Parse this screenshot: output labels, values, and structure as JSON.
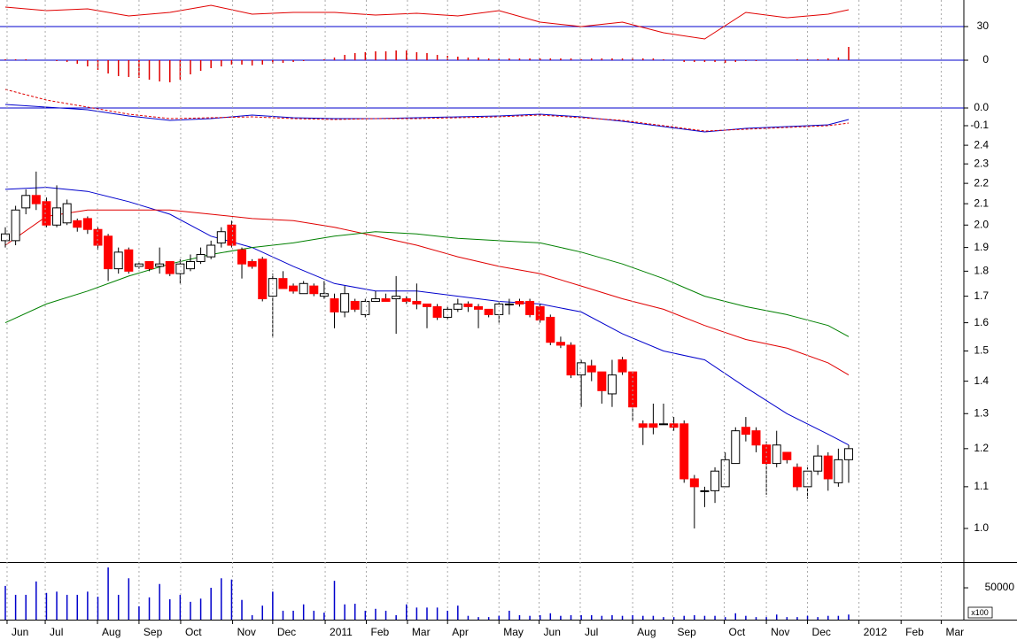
{
  "chart_data": [
    {
      "type": "line",
      "xlim": [
        -0.517,
        93.2
      ],
      "ylim": [
        12,
        60
      ],
      "yticks": [
        30
      ],
      "reference_line": {
        "value": 30,
        "color": "#0000cc"
      },
      "series": [
        {
          "color": "#e00000",
          "x": [
            0,
            4,
            8,
            12,
            16,
            20,
            24,
            28,
            32,
            36,
            40,
            44,
            48,
            52,
            56,
            60,
            64,
            68,
            72,
            76,
            80,
            82
          ],
          "values": [
            52,
            48,
            50,
            42,
            46,
            54,
            44,
            46,
            46,
            43,
            45,
            42,
            48,
            35,
            30,
            35,
            23,
            16,
            46,
            40,
            44,
            49
          ]
        }
      ]
    },
    {
      "type": "bar",
      "xlim": [
        -0.517,
        93.2
      ],
      "ylim": [
        -25,
        20
      ],
      "yticks": [
        0
      ],
      "color": "#e00000",
      "reference_line": {
        "value": 0,
        "color": "#0000cc"
      },
      "categories": [
        null,
        null,
        null,
        null,
        null,
        null,
        null,
        null,
        null,
        null,
        null,
        null,
        null,
        null,
        null,
        null,
        null,
        null,
        null,
        null,
        null,
        null,
        null,
        null,
        null,
        null,
        null,
        null,
        null,
        null,
        null,
        null,
        null,
        null,
        null,
        null,
        null,
        null,
        null,
        null,
        null,
        null,
        null,
        null,
        null,
        null,
        null,
        null,
        null,
        null,
        null,
        null,
        null,
        null,
        null,
        null,
        null,
        null,
        null,
        null,
        null,
        null,
        null,
        null,
        null,
        null,
        null,
        null,
        null,
        null,
        null,
        null,
        null,
        null,
        null,
        null,
        null,
        null,
        null,
        null,
        null,
        null,
        null
      ],
      "values": [
        1,
        1,
        1,
        0,
        0,
        -1,
        -2,
        -4,
        -7,
        -11,
        -15,
        -18,
        -19,
        -20,
        -22,
        -24,
        -25,
        -22,
        -16,
        -12,
        -9,
        -7,
        -5,
        -5,
        -6,
        -5,
        -4,
        -3,
        -2,
        -1,
        0,
        1,
        3,
        6,
        8,
        9,
        10,
        10,
        11,
        11,
        9,
        8,
        6,
        5,
        4,
        3,
        3,
        2,
        2,
        2,
        2,
        2,
        2,
        2,
        2,
        2,
        1,
        2,
        2,
        2,
        2,
        3,
        2,
        2,
        1,
        0,
        -2,
        -2,
        -2,
        -2,
        -3,
        -2,
        -1,
        -1,
        0,
        0,
        0,
        1,
        1,
        1,
        2,
        3,
        15
      ]
    },
    {
      "type": "line",
      "xlim": [
        -0.517,
        93.2
      ],
      "ylim": [
        -0.18,
        0.135
      ],
      "yticks": [
        {
          "value": 0,
          "label": "0.0"
        },
        -0.1
      ],
      "reference_line": {
        "value": 0,
        "color": "#0000cc"
      },
      "series": [
        {
          "color": "#0000cc",
          "line_style": "solid",
          "x": [
            0,
            4,
            8,
            12,
            16,
            20,
            24,
            28,
            32,
            36,
            40,
            44,
            48,
            52,
            56,
            60,
            64,
            68,
            72,
            76,
            80,
            82
          ],
          "values": [
            0.02,
            0.005,
            -0.01,
            -0.045,
            -0.07,
            -0.06,
            -0.04,
            -0.055,
            -0.06,
            -0.06,
            -0.055,
            -0.05,
            -0.045,
            -0.035,
            -0.05,
            -0.075,
            -0.105,
            -0.135,
            -0.115,
            -0.105,
            -0.095,
            -0.065
          ]
        },
        {
          "color": "#e00000",
          "line_style": "dashed",
          "x": [
            0,
            4,
            8,
            12,
            16,
            20,
            24,
            28,
            32,
            36,
            40,
            44,
            48,
            52,
            56,
            60,
            64,
            68,
            72,
            76,
            80,
            82
          ],
          "values": [
            0.105,
            0.045,
            0.005,
            -0.035,
            -0.06,
            -0.055,
            -0.05,
            -0.06,
            -0.065,
            -0.06,
            -0.06,
            -0.055,
            -0.05,
            -0.04,
            -0.055,
            -0.07,
            -0.1,
            -0.13,
            -0.12,
            -0.11,
            -0.1,
            -0.085
          ]
        }
      ]
    },
    {
      "type": "candlestick",
      "xlim": [
        -0.517,
        93.2
      ],
      "ylim": [
        0.926,
        2.42
      ],
      "log_scale": true,
      "yticks": [
        2.4,
        2.3,
        2.2,
        2.1,
        {
          "value": 2,
          "label": "2.0"
        },
        1.9,
        1.8,
        1.7,
        1.6,
        1.5,
        1.4,
        1.3,
        1.2,
        1.1,
        {
          "value": 1,
          "label": "1.0"
        }
      ],
      "up_color": "#ffffff",
      "down_color": "#ff0000",
      "categories": [
        null,
        null,
        null,
        null,
        null,
        null,
        null,
        null,
        null,
        null,
        null,
        null,
        null,
        null,
        null,
        null,
        null,
        null,
        null,
        null,
        null,
        null,
        null,
        null,
        null,
        null,
        null,
        null,
        null,
        null,
        null,
        null,
        null,
        null,
        null,
        null,
        null,
        null,
        null,
        null,
        null,
        null,
        null,
        null,
        null,
        null,
        null,
        null,
        null,
        null,
        null,
        null,
        null,
        null,
        null,
        null,
        null,
        null,
        null,
        null,
        null,
        null,
        null,
        null,
        null,
        null,
        null,
        null,
        null,
        null,
        null,
        null,
        null,
        null,
        null,
        null,
        null,
        null,
        null,
        null,
        null,
        null,
        null
      ],
      "open": [
        1.93,
        1.93,
        2.08,
        2.14,
        2.11,
        2.0,
        2.01,
        2.02,
        2.03,
        1.98,
        1.95,
        1.81,
        1.89,
        1.82,
        1.84,
        1.82,
        1.84,
        1.79,
        1.81,
        1.84,
        1.86,
        1.92,
        2.0,
        1.89,
        1.84,
        1.85,
        1.7,
        1.77,
        1.74,
        1.71,
        1.74,
        1.7,
        1.69,
        1.64,
        1.68,
        1.63,
        1.68,
        1.69,
        1.69,
        1.69,
        1.68,
        1.67,
        1.66,
        1.62,
        1.65,
        1.67,
        1.66,
        1.65,
        1.63,
        1.67,
        1.68,
        1.68,
        1.66,
        1.62,
        1.53,
        1.52,
        1.42,
        1.45,
        1.43,
        1.36,
        1.47,
        1.43,
        1.27,
        1.27,
        1.27,
        1.27,
        1.27,
        1.12,
        1.09,
        1.09,
        1.1,
        1.16,
        1.26,
        1.25,
        1.21,
        1.16,
        1.19,
        1.15,
        1.1,
        1.14,
        1.18,
        1.11,
        1.17
      ],
      "high": [
        1.99,
        2.09,
        2.17,
        2.26,
        2.13,
        2.19,
        2.12,
        2.03,
        2.04,
        1.99,
        1.96,
        1.9,
        1.9,
        1.84,
        1.84,
        1.9,
        1.84,
        1.85,
        1.87,
        1.9,
        1.93,
        1.99,
        2.02,
        1.9,
        1.85,
        1.86,
        1.79,
        1.8,
        1.75,
        1.76,
        1.75,
        1.76,
        1.71,
        1.74,
        1.69,
        1.69,
        1.72,
        1.71,
        1.78,
        1.7,
        1.75,
        1.67,
        1.67,
        1.66,
        1.69,
        1.68,
        1.67,
        1.65,
        1.68,
        1.69,
        1.69,
        1.69,
        1.67,
        1.63,
        1.55,
        1.53,
        1.47,
        1.47,
        1.43,
        1.47,
        1.48,
        1.43,
        1.28,
        1.33,
        1.33,
        1.29,
        1.28,
        1.13,
        1.1,
        1.15,
        1.19,
        1.26,
        1.29,
        1.26,
        1.22,
        1.25,
        1.19,
        1.16,
        1.15,
        1.21,
        1.19,
        1.2,
        1.21
      ],
      "low": [
        1.9,
        1.91,
        2.05,
        2.07,
        1.99,
        1.99,
        2.0,
        1.97,
        1.96,
        1.89,
        1.76,
        1.79,
        1.79,
        1.81,
        1.8,
        1.79,
        1.78,
        1.75,
        1.8,
        1.83,
        1.85,
        1.9,
        1.9,
        1.77,
        1.81,
        1.68,
        1.55,
        1.73,
        1.71,
        1.71,
        1.7,
        1.69,
        1.58,
        1.62,
        1.64,
        1.62,
        1.68,
        1.68,
        1.56,
        1.67,
        1.65,
        1.58,
        1.61,
        1.61,
        1.64,
        1.64,
        1.58,
        1.62,
        1.6,
        1.63,
        1.66,
        1.62,
        1.6,
        1.52,
        1.51,
        1.41,
        1.32,
        1.4,
        1.33,
        1.32,
        1.42,
        1.28,
        1.21,
        1.24,
        1.27,
        1.25,
        1.11,
        1.0,
        1.05,
        1.06,
        1.1,
        1.16,
        1.22,
        1.19,
        1.08,
        1.15,
        1.16,
        1.09,
        1.07,
        1.13,
        1.09,
        1.1,
        1.11
      ],
      "close": [
        1.96,
        2.07,
        2.14,
        2.1,
        2.0,
        2.08,
        2.1,
        1.99,
        1.98,
        1.91,
        1.81,
        1.88,
        1.8,
        1.83,
        1.81,
        1.83,
        1.79,
        1.83,
        1.84,
        1.87,
        1.91,
        1.97,
        1.91,
        1.83,
        1.82,
        1.69,
        1.77,
        1.73,
        1.72,
        1.75,
        1.71,
        1.71,
        1.64,
        1.71,
        1.65,
        1.68,
        1.69,
        1.68,
        1.7,
        1.68,
        1.67,
        1.66,
        1.62,
        1.65,
        1.67,
        1.66,
        1.65,
        1.63,
        1.67,
        1.67,
        1.67,
        1.63,
        1.61,
        1.53,
        1.52,
        1.42,
        1.46,
        1.43,
        1.37,
        1.42,
        1.43,
        1.32,
        1.26,
        1.26,
        1.27,
        1.26,
        1.12,
        1.1,
        1.09,
        1.14,
        1.17,
        1.25,
        1.24,
        1.21,
        1.16,
        1.21,
        1.17,
        1.1,
        1.14,
        1.18,
        1.12,
        1.17,
        1.2
      ],
      "series": [
        {
          "color": "#0000cc",
          "x": [
            0,
            4,
            8,
            12,
            16,
            20,
            24,
            28,
            32,
            36,
            40,
            44,
            48,
            52,
            56,
            60,
            64,
            68,
            72,
            76,
            80,
            82
          ],
          "values": [
            2.17,
            2.18,
            2.16,
            2.11,
            2.05,
            1.95,
            1.9,
            1.82,
            1.75,
            1.72,
            1.72,
            1.7,
            1.68,
            1.67,
            1.64,
            1.56,
            1.5,
            1.47,
            1.38,
            1.3,
            1.24,
            1.21
          ]
        },
        {
          "color": "#e00000",
          "x": [
            0,
            4,
            8,
            12,
            16,
            20,
            24,
            28,
            32,
            36,
            40,
            44,
            48,
            52,
            56,
            60,
            64,
            68,
            72,
            76,
            80,
            82
          ],
          "values": [
            1.91,
            2.04,
            2.07,
            2.07,
            2.07,
            2.05,
            2.03,
            2.02,
            1.99,
            1.95,
            1.91,
            1.86,
            1.82,
            1.79,
            1.74,
            1.69,
            1.65,
            1.59,
            1.54,
            1.51,
            1.46,
            1.42
          ]
        },
        {
          "color": "#008000",
          "x": [
            0,
            4,
            8,
            12,
            16,
            20,
            24,
            28,
            32,
            36,
            40,
            44,
            48,
            52,
            56,
            60,
            64,
            68,
            72,
            76,
            80,
            82
          ],
          "values": [
            1.6,
            1.67,
            1.72,
            1.78,
            1.83,
            1.87,
            1.9,
            1.92,
            1.95,
            1.97,
            1.96,
            1.94,
            1.93,
            1.92,
            1.88,
            1.83,
            1.77,
            1.7,
            1.66,
            1.63,
            1.59,
            1.55
          ]
        }
      ]
    },
    {
      "type": "bar",
      "xlim": [
        -0.517,
        93.2
      ],
      "ylim": [
        0,
        89000
      ],
      "yticks": [
        50000
      ],
      "color": "#0000cc",
      "unit_label": "x100",
      "categories": [
        null,
        null,
        null,
        null,
        null,
        null,
        null,
        null,
        null,
        null,
        null,
        null,
        null,
        null,
        null,
        null,
        null,
        null,
        null,
        null,
        null,
        null,
        null,
        null,
        null,
        null,
        null,
        null,
        null,
        null,
        null,
        null,
        null,
        null,
        null,
        null,
        null,
        null,
        null,
        null,
        null,
        null,
        null,
        null,
        null,
        null,
        null,
        null,
        null,
        null,
        null,
        null,
        null,
        null,
        null,
        null,
        null,
        null,
        null,
        null,
        null,
        null,
        null,
        null,
        null,
        null,
        null,
        null,
        null,
        null,
        null,
        null,
        null,
        null,
        null,
        null,
        null,
        null,
        null,
        null,
        null,
        null,
        null
      ],
      "values": [
        53000,
        39000,
        39000,
        60000,
        42000,
        44000,
        39000,
        39000,
        44000,
        36000,
        82000,
        39000,
        65000,
        21000,
        35000,
        56000,
        32000,
        39000,
        28000,
        33000,
        50000,
        65000,
        63000,
        31000,
        7000,
        22000,
        44000,
        14000,
        14000,
        24000,
        14000,
        11000,
        61000,
        24000,
        25000,
        14000,
        17000,
        14000,
        7000,
        24000,
        19000,
        19000,
        19000,
        14000,
        22000,
        6000,
        4000,
        4000,
        6000,
        14000,
        7000,
        6000,
        7000,
        10000,
        6000,
        7000,
        7000,
        7000,
        6000,
        7000,
        6000,
        7000,
        6000,
        6000,
        4000,
        4000,
        6000,
        7000,
        6000,
        6000,
        4000,
        10000,
        6000,
        4000,
        4000,
        8000,
        4000,
        4000,
        6000,
        4000,
        6000,
        6000,
        8000
      ],
      "xticks": [
        {
          "value": 0.17,
          "label": "Jun"
        },
        {
          "value": 3.88,
          "label": "Jul"
        },
        {
          "value": 8.96,
          "label": "Aug"
        },
        {
          "value": 13.0,
          "label": "Sep"
        },
        {
          "value": 17.05,
          "label": "Oct"
        },
        {
          "value": 22.1,
          "label": "Nov"
        },
        {
          "value": 26.0,
          "label": "Dec"
        },
        {
          "value": 31.1,
          "label": "2011"
        },
        {
          "value": 35.1,
          "label": "Feb"
        },
        {
          "value": 39.1,
          "label": "Mar"
        },
        {
          "value": 43.0,
          "label": "Apr"
        },
        {
          "value": 48.0,
          "label": "May"
        },
        {
          "value": 51.9,
          "label": "Jun"
        },
        {
          "value": 55.9,
          "label": "Jul"
        },
        {
          "value": 61.0,
          "label": "Aug"
        },
        {
          "value": 64.9,
          "label": "Sep"
        },
        {
          "value": 69.9,
          "label": "Oct"
        },
        {
          "value": 74.0,
          "label": "Nov"
        },
        {
          "value": 78.0,
          "label": "Dec"
        },
        {
          "value": 83.0,
          "label": "2012"
        },
        {
          "value": 87.1,
          "label": "Feb"
        },
        {
          "value": 91.0,
          "label": "Mar"
        }
      ]
    }
  ]
}
